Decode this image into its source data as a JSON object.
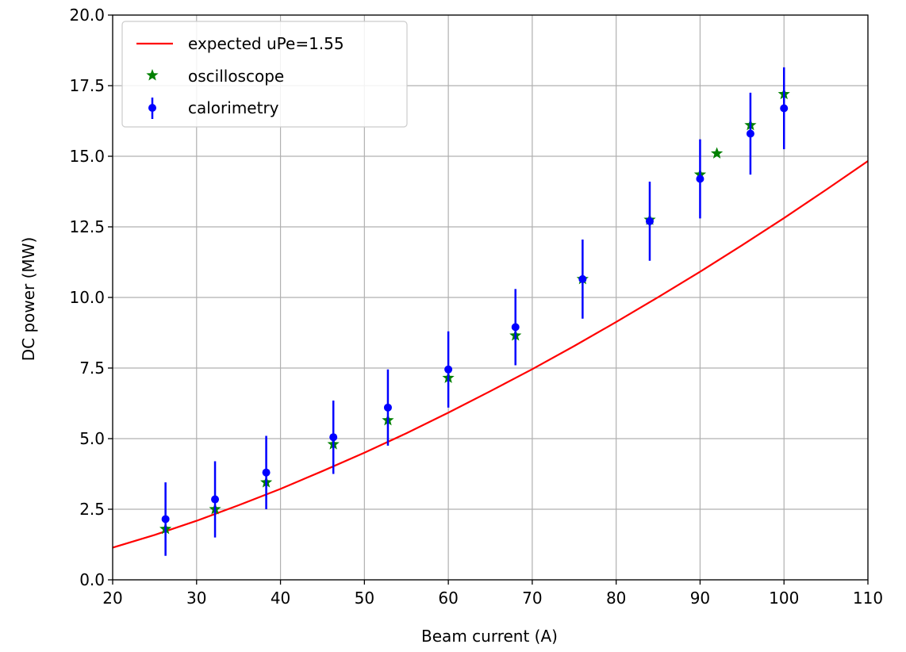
{
  "chart_data": {
    "type": "scatter",
    "title": "",
    "xlabel": "Beam current (A)",
    "ylabel": "DC power (MW)",
    "xlim": [
      20,
      110
    ],
    "ylim": [
      0.0,
      20.0
    ],
    "xticks": [
      20,
      30,
      40,
      50,
      60,
      70,
      80,
      90,
      100,
      110
    ],
    "xtick_labels": [
      "20",
      "30",
      "40",
      "50",
      "60",
      "70",
      "80",
      "90",
      "100",
      "110"
    ],
    "yticks": [
      0.0,
      2.5,
      5.0,
      7.5,
      10.0,
      12.5,
      15.0,
      17.5,
      20.0
    ],
    "ytick_labels": [
      "0.0",
      "2.5",
      "5.0",
      "7.5",
      "10.0",
      "12.5",
      "15.0",
      "17.5",
      "20.0"
    ],
    "grid": true,
    "legend_position": "top-left",
    "series": [
      {
        "name": "expected uPe=1.55",
        "kind": "line",
        "color": "#ff0000",
        "x": [
          20,
          25,
          30,
          35,
          40,
          45,
          50,
          55,
          60,
          65,
          70,
          75,
          80,
          85,
          90,
          95,
          100,
          105,
          110
        ],
        "y": [
          1.14,
          1.59,
          2.09,
          2.64,
          3.22,
          3.85,
          4.5,
          5.19,
          5.92,
          6.68,
          7.46,
          8.28,
          9.13,
          10.01,
          10.91,
          11.85,
          12.81,
          13.81,
          14.83
        ]
      },
      {
        "name": "oscilloscope",
        "kind": "scatter",
        "marker": "star",
        "color": "#008000",
        "x": [
          26.3,
          32.2,
          38.3,
          46.3,
          52.8,
          60.0,
          68.0,
          76.0,
          84.0,
          90.0,
          92.0,
          96.0,
          100.0
        ],
        "y": [
          1.8,
          2.5,
          3.45,
          4.8,
          5.65,
          7.15,
          8.65,
          10.65,
          12.75,
          14.35,
          15.1,
          16.1,
          17.2
        ]
      },
      {
        "name": "calorimetry",
        "kind": "errorbar",
        "marker": "circle",
        "color": "#0000ff",
        "x": [
          26.3,
          32.2,
          38.3,
          46.3,
          52.8,
          60.0,
          68.0,
          76.0,
          84.0,
          90.0,
          96.0,
          100.0
        ],
        "y": [
          2.15,
          2.85,
          3.8,
          5.05,
          6.1,
          7.45,
          8.95,
          10.65,
          12.7,
          14.2,
          15.8,
          16.7
        ],
        "yerr": [
          1.3,
          1.35,
          1.3,
          1.3,
          1.35,
          1.35,
          1.35,
          1.4,
          1.4,
          1.4,
          1.45,
          1.45
        ]
      }
    ]
  }
}
